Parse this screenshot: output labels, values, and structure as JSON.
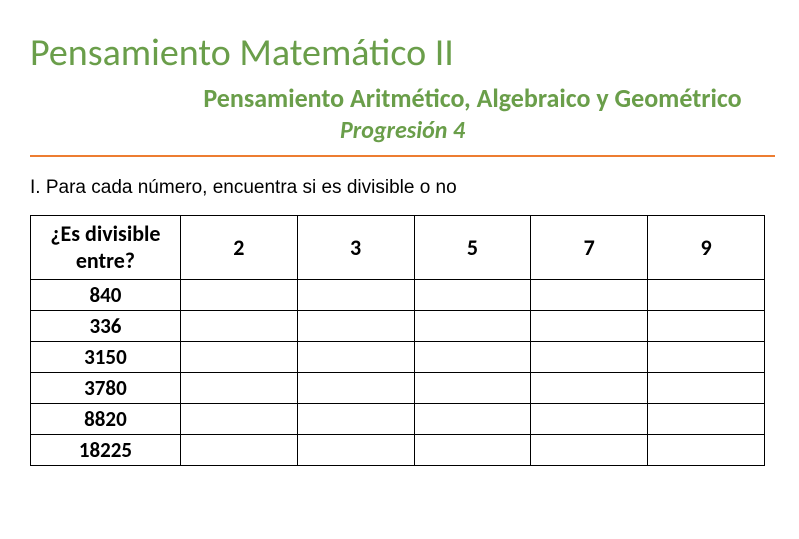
{
  "header": {
    "main_title": "Pensamiento Matemático II",
    "subtitle": "Pensamiento Aritmético, Algebraico y Geométrico",
    "progression": "Progresión 4"
  },
  "colors": {
    "heading_green": "#6a9e4a",
    "divider_orange": "#ed7d31",
    "text_black": "#000000",
    "background": "#ffffff",
    "border": "#000000"
  },
  "instruction": "I. Para cada número, encuentra si es divisible o no",
  "table": {
    "header_label_line1": "¿Es divisible",
    "header_label_line2": "entre?",
    "columns": [
      "2",
      "3",
      "5",
      "7",
      "9"
    ],
    "rows": [
      {
        "label": "840",
        "cells": [
          "",
          "",
          "",
          "",
          ""
        ]
      },
      {
        "label": "336",
        "cells": [
          "",
          "",
          "",
          "",
          ""
        ]
      },
      {
        "label": "3150",
        "cells": [
          "",
          "",
          "",
          "",
          ""
        ]
      },
      {
        "label": "3780",
        "cells": [
          "",
          "",
          "",
          "",
          ""
        ]
      },
      {
        "label": "8820",
        "cells": [
          "",
          "",
          "",
          "",
          ""
        ]
      },
      {
        "label": "18225",
        "cells": [
          "",
          "",
          "",
          "",
          ""
        ]
      }
    ],
    "column_widths": {
      "first": 150,
      "others": 117
    }
  },
  "typography": {
    "main_title_fontsize": 38,
    "subtitle_fontsize": 26,
    "progression_fontsize": 24,
    "instruction_fontsize": 19,
    "table_header_fontsize": 22,
    "table_row_label_fontsize": 21
  }
}
